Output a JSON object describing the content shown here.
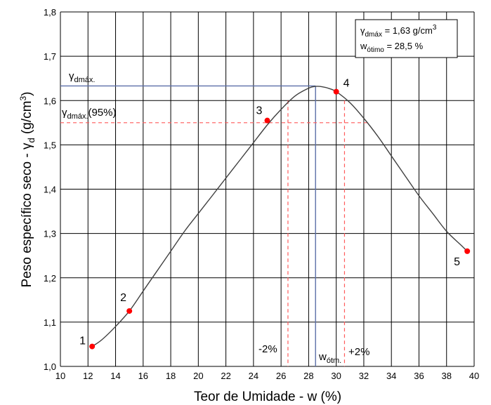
{
  "chart_data": {
    "type": "line",
    "xlabel": "Teor de Umidade - w (%)",
    "ylabel_main": "Peso específico seco - γ",
    "ylabel_sub": "d",
    "ylabel_unit": " (g/cm",
    "ylabel_sup": "3",
    "ylabel_close": ")",
    "xlim": [
      10,
      40
    ],
    "ylim": [
      1.0,
      1.8
    ],
    "xticks": [
      10,
      12,
      14,
      16,
      18,
      20,
      22,
      24,
      26,
      28,
      30,
      32,
      34,
      36,
      38,
      40
    ],
    "xtick_labels": [
      "10",
      "12",
      "14",
      "16",
      "18",
      "20",
      "22",
      "24",
      "26",
      "28",
      "30",
      "32",
      "34",
      "36",
      "38",
      "40"
    ],
    "yticks": [
      1.0,
      1.1,
      1.2,
      1.3,
      1.4,
      1.5,
      1.6,
      1.7,
      1.8
    ],
    "ytick_labels": [
      "1,0",
      "1,1",
      "1,2",
      "1,3",
      "1,4",
      "1,5",
      "1,6",
      "1,7",
      "1,8"
    ],
    "grid": true,
    "points": [
      {
        "label": "1",
        "x": 12.3,
        "y": 1.045
      },
      {
        "label": "2",
        "x": 15.0,
        "y": 1.125
      },
      {
        "label": "3",
        "x": 25.0,
        "y": 1.555
      },
      {
        "label": "4",
        "x": 30.0,
        "y": 1.62
      },
      {
        "label": "5",
        "x": 39.5,
        "y": 1.26
      }
    ],
    "curve": [
      [
        12.3,
        1.045
      ],
      [
        13.0,
        1.06
      ],
      [
        14.0,
        1.09
      ],
      [
        15.0,
        1.125
      ],
      [
        16.0,
        1.17
      ],
      [
        17.0,
        1.215
      ],
      [
        18.0,
        1.26
      ],
      [
        19.0,
        1.305
      ],
      [
        20.0,
        1.345
      ],
      [
        21.0,
        1.385
      ],
      [
        22.0,
        1.425
      ],
      [
        23.0,
        1.465
      ],
      [
        24.0,
        1.505
      ],
      [
        25.0,
        1.545
      ],
      [
        26.0,
        1.58
      ],
      [
        27.0,
        1.61
      ],
      [
        28.0,
        1.628
      ],
      [
        28.5,
        1.632
      ],
      [
        29.0,
        1.631
      ],
      [
        29.5,
        1.627
      ],
      [
        30.0,
        1.62
      ],
      [
        31.0,
        1.595
      ],
      [
        32.0,
        1.56
      ],
      [
        33.0,
        1.52
      ],
      [
        34.0,
        1.475
      ],
      [
        35.0,
        1.43
      ],
      [
        36.0,
        1.385
      ],
      [
        37.0,
        1.345
      ],
      [
        38.0,
        1.305
      ],
      [
        39.0,
        1.275
      ],
      [
        39.5,
        1.26
      ]
    ],
    "gamma_dmax": 1.633,
    "gamma_95": 1.55,
    "w_otimo": 28.5,
    "w_minus2": 26.5,
    "w_plus2": 30.6,
    "gamma_95_line_end": 32.3,
    "annotations": {
      "gamma_dmax_label": "γ",
      "gamma_dmax_sub": "dmáx.",
      "gamma_95_label": "γ",
      "gamma_95_sub": "dmáx.",
      "gamma_95_suffix": "(95%)",
      "w_otm_label": "w",
      "w_otm_sub": "ótm.",
      "minus2": "-2%",
      "plus2": "+2%"
    },
    "legend": {
      "line1_sym": "γ",
      "line1_sub": "dmáx",
      "line1_text": " = 1,63 g/cm",
      "line1_sup": "3",
      "line2_sym": "w",
      "line2_sub": "ótimo",
      "line2_text": " = 28,5 %"
    },
    "colors": {
      "curve": "#404040",
      "point": "#ff0000",
      "blue": "#5b6fa8",
      "red_dash": "#ff5a5a",
      "grid": "#000000"
    }
  }
}
